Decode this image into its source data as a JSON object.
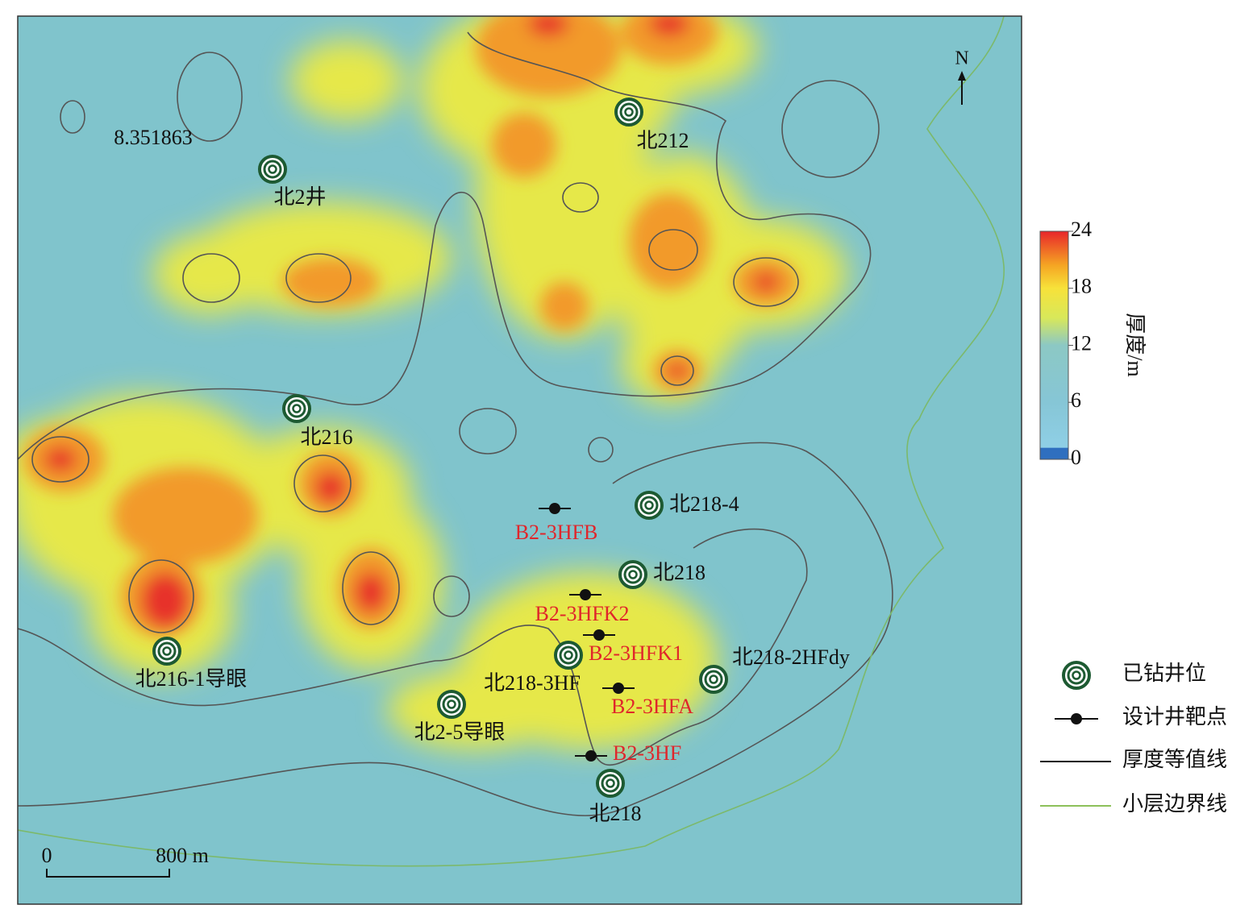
{
  "map": {
    "north": "N",
    "contour_label": "8.351863",
    "scale_bar": {
      "start": "0",
      "end": "800 m"
    },
    "colorbar": {
      "title": "厚度/m",
      "ticks": [
        0,
        6,
        12,
        18,
        24
      ]
    },
    "wells": [
      {
        "label": "北212"
      },
      {
        "label": "北2井"
      },
      {
        "label": "北216"
      },
      {
        "label": "北216-1导眼"
      },
      {
        "label": "北218-4"
      },
      {
        "label": "北218"
      },
      {
        "label": "北218-3HF"
      },
      {
        "label": "北218-2HFdy"
      },
      {
        "label": "北2-5导眼"
      },
      {
        "label": "北218"
      }
    ],
    "targets": [
      {
        "label": "B2-3HFB"
      },
      {
        "label": "B2-3HFK2"
      },
      {
        "label": "B2-3HFK1"
      },
      {
        "label": "B2-3HFA"
      },
      {
        "label": "B2-3HF"
      }
    ]
  },
  "legend": [
    {
      "label": "已钻井位"
    },
    {
      "label": "设计井靶点"
    },
    {
      "label": "厚度等值线"
    },
    {
      "label": "小层边界线"
    }
  ]
}
